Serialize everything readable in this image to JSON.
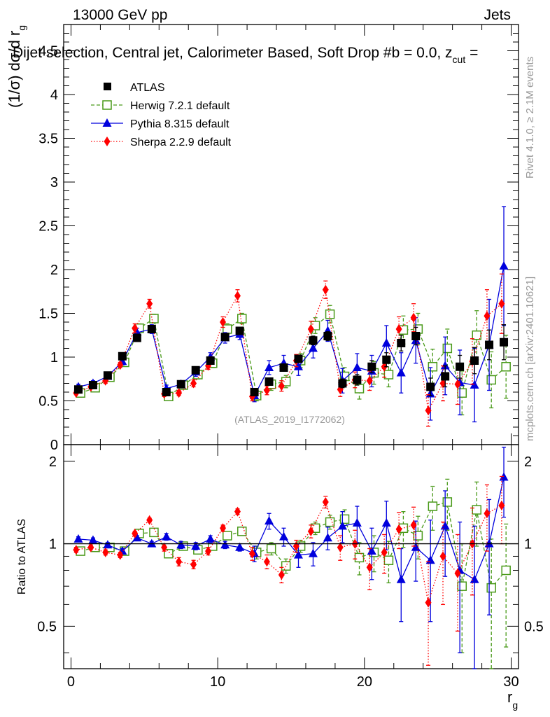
{
  "header": {
    "energy_label": "13000 GeV pp",
    "process_label": "Jets",
    "title": "Dijet selection, Central jet, Calorimeter Based, Soft Drop #b = 0.0, z",
    "title_sub": "cut",
    "title_tail": " = ",
    "rivet_label": "Rivet 4.1.0, ≥ 2.1M events",
    "mcplots_label": "mcplots.cern.ch [arXiv:2401.10621]",
    "analysis_label": "(ATLAS_2019_I1772062)"
  },
  "colors": {
    "atlas": "#000000",
    "herwig": "#4a9a1a",
    "pythia": "#0000dd",
    "sherpa": "#ff0000",
    "watermark": "#999999"
  },
  "chart_data": [
    {
      "type": "line",
      "panel": "main",
      "ylabel": "(1/σ) dσ/d r",
      "ylabel_sub": "g",
      "xlim": [
        -0.5,
        30.5
      ],
      "ylim": [
        0,
        4.8
      ],
      "yticks": [
        0,
        0.5,
        1,
        1.5,
        2,
        2.5,
        3,
        3.5,
        4,
        4.5
      ],
      "ytick_labels": [
        "0",
        "0.5",
        "1",
        "1.5",
        "2",
        "2.5",
        "3",
        "3.5",
        "4",
        "4.5"
      ],
      "x": [
        0.5,
        1.5,
        2.5,
        3.5,
        4.5,
        5.5,
        6.5,
        7.5,
        8.5,
        9.5,
        10.5,
        11.5,
        12.5,
        13.5,
        14.5,
        15.5,
        16.5,
        17.5,
        18.5,
        19.5,
        20.5,
        21.5,
        22.5,
        23.5,
        24.5,
        25.5,
        26.5,
        27.5,
        28.5,
        29.5
      ],
      "series": [
        {
          "name": "ATLAS",
          "style": "data",
          "values": [
            0.63,
            0.68,
            0.79,
            1.01,
            1.22,
            1.32,
            0.6,
            0.69,
            0.85,
            0.96,
            1.23,
            1.3,
            0.6,
            0.72,
            0.88,
            0.98,
            1.19,
            1.24,
            0.7,
            0.74,
            0.89,
            0.97,
            1.16,
            1.24,
            0.66,
            0.78,
            0.89,
            0.96,
            1.14,
            1.17
          ],
          "errors": [
            0.02,
            0.02,
            0.02,
            0.03,
            0.03,
            0.04,
            0.02,
            0.02,
            0.03,
            0.03,
            0.04,
            0.04,
            0.03,
            0.03,
            0.04,
            0.04,
            0.05,
            0.05,
            0.05,
            0.06,
            0.07,
            0.08,
            0.09,
            0.1,
            0.1,
            0.12,
            0.13,
            0.15,
            0.17,
            0.2
          ]
        },
        {
          "name": "Herwig 7.2.1 default",
          "style": "herwig",
          "values": [
            0.59,
            0.65,
            0.77,
            0.94,
            1.33,
            1.44,
            0.55,
            0.68,
            0.8,
            0.93,
            1.32,
            1.44,
            0.56,
            0.69,
            0.72,
            0.96,
            1.36,
            1.49,
            0.78,
            0.64,
            0.82,
            0.8,
            1.31,
            1.32,
            0.89,
            1.1,
            0.59,
            1.25,
            0.74,
            0.89
          ],
          "errors": [
            0.03,
            0.03,
            0.03,
            0.04,
            0.05,
            0.05,
            0.04,
            0.04,
            0.05,
            0.05,
            0.06,
            0.06,
            0.06,
            0.07,
            0.07,
            0.08,
            0.09,
            0.1,
            0.1,
            0.12,
            0.13,
            0.14,
            0.16,
            0.18,
            0.2,
            0.22,
            0.25,
            0.28,
            0.32,
            0.36
          ]
        },
        {
          "name": "Pythia 8.315 default",
          "style": "pythia",
          "values": [
            0.66,
            0.7,
            0.78,
            0.95,
            1.28,
            1.32,
            0.64,
            0.69,
            0.83,
            1.0,
            1.22,
            1.26,
            0.56,
            0.88,
            0.93,
            0.89,
            1.1,
            1.3,
            0.73,
            0.88,
            0.84,
            1.16,
            0.82,
            1.19,
            0.58,
            0.9,
            0.71,
            0.68,
            1.14,
            2.04
          ],
          "errors": [
            0.03,
            0.03,
            0.03,
            0.04,
            0.05,
            0.05,
            0.04,
            0.04,
            0.05,
            0.05,
            0.06,
            0.06,
            0.07,
            0.08,
            0.09,
            0.1,
            0.11,
            0.12,
            0.14,
            0.16,
            0.18,
            0.2,
            0.23,
            0.26,
            0.3,
            0.33,
            0.37,
            0.42,
            0.52,
            0.68
          ]
        },
        {
          "name": "Sherpa 2.2.9 default",
          "style": "sherpa",
          "values": [
            0.59,
            0.66,
            0.73,
            0.91,
            1.33,
            1.61,
            0.58,
            0.59,
            0.7,
            0.9,
            1.4,
            1.7,
            0.55,
            0.62,
            0.67,
            0.96,
            1.32,
            1.77,
            0.63,
            0.74,
            0.73,
            0.89,
            1.32,
            1.45,
            0.39,
            0.7,
            0.69,
            0.95,
            1.47,
            1.61
          ],
          "errors": [
            0.02,
            0.02,
            0.03,
            0.03,
            0.05,
            0.05,
            0.03,
            0.03,
            0.04,
            0.04,
            0.06,
            0.07,
            0.05,
            0.05,
            0.06,
            0.07,
            0.09,
            0.1,
            0.08,
            0.09,
            0.11,
            0.12,
            0.14,
            0.16,
            0.18,
            0.2,
            0.23,
            0.26,
            0.3,
            0.34
          ]
        }
      ]
    },
    {
      "type": "line",
      "panel": "ratio",
      "ylabel": "Ratio to ATLAS",
      "xlabel": "r",
      "xlabel_sub": "g",
      "xlim": [
        -0.5,
        30.5
      ],
      "ylim": [
        0.35,
        2.3
      ],
      "xticks": [
        0,
        10,
        20,
        30
      ],
      "xtick_labels": [
        "0",
        "10",
        "20",
        "30"
      ],
      "yticks": [
        0.5,
        1,
        2
      ],
      "ytick_labels": [
        "0.5",
        "1",
        "2"
      ],
      "x": [
        0.5,
        1.5,
        2.5,
        3.5,
        4.5,
        5.5,
        6.5,
        7.5,
        8.5,
        9.5,
        10.5,
        11.5,
        12.5,
        13.5,
        14.5,
        15.5,
        16.5,
        17.5,
        18.5,
        19.5,
        20.5,
        21.5,
        22.5,
        23.5,
        24.5,
        25.5,
        26.5,
        27.5,
        28.5,
        29.5
      ],
      "series": [
        {
          "name": "Herwig 7.2.1 default",
          "style": "herwig",
          "values": [
            0.94,
            0.97,
            0.97,
            0.94,
            1.09,
            1.1,
            0.92,
            0.98,
            0.95,
            0.98,
            1.07,
            1.11,
            0.93,
            0.96,
            0.83,
            0.98,
            1.14,
            1.2,
            1.23,
            0.89,
            0.93,
            0.87,
            1.14,
            1.07,
            1.37,
            1.42,
            0.7,
            1.33,
            0.69,
            0.8
          ],
          "errors": [
            0.02,
            0.02,
            0.02,
            0.02,
            0.02,
            0.02,
            0.03,
            0.03,
            0.03,
            0.03,
            0.03,
            0.03,
            0.05,
            0.05,
            0.05,
            0.05,
            0.06,
            0.07,
            0.1,
            0.12,
            0.14,
            0.15,
            0.17,
            0.19,
            0.25,
            0.3,
            0.3,
            0.35,
            0.35,
            0.38
          ]
        },
        {
          "name": "Pythia 8.315 default",
          "style": "pythia",
          "values": [
            1.04,
            1.03,
            0.99,
            0.94,
            1.05,
            1.0,
            1.06,
            0.99,
            0.98,
            1.04,
            0.99,
            0.97,
            0.92,
            1.21,
            1.06,
            0.91,
            0.92,
            1.05,
            1.16,
            1.19,
            0.94,
            1.19,
            0.74,
            0.97,
            0.87,
            1.16,
            0.8,
            0.74,
            1.0,
            1.75
          ],
          "errors": [
            0.02,
            0.02,
            0.02,
            0.02,
            0.02,
            0.02,
            0.03,
            0.03,
            0.03,
            0.03,
            0.03,
            0.03,
            0.06,
            0.08,
            0.08,
            0.09,
            0.09,
            0.1,
            0.15,
            0.18,
            0.2,
            0.24,
            0.22,
            0.24,
            0.35,
            0.4,
            0.4,
            0.42,
            0.45,
            0.5
          ]
        },
        {
          "name": "Sherpa 2.2.9 default",
          "style": "sherpa",
          "values": [
            0.95,
            0.97,
            0.93,
            0.91,
            1.09,
            1.22,
            0.97,
            0.86,
            0.84,
            0.94,
            1.14,
            1.31,
            0.92,
            0.86,
            0.77,
            0.98,
            1.11,
            1.42,
            0.97,
            1.0,
            0.82,
            0.93,
            1.13,
            1.17,
            0.61,
            0.9,
            0.78,
            1.0,
            1.29,
            1.38
          ],
          "errors": [
            0.02,
            0.02,
            0.02,
            0.02,
            0.02,
            0.02,
            0.03,
            0.03,
            0.03,
            0.03,
            0.03,
            0.03,
            0.05,
            0.05,
            0.05,
            0.05,
            0.06,
            0.07,
            0.1,
            0.12,
            0.14,
            0.15,
            0.17,
            0.19,
            0.25,
            0.3,
            0.3,
            0.35,
            0.35,
            0.38
          ]
        }
      ]
    }
  ]
}
